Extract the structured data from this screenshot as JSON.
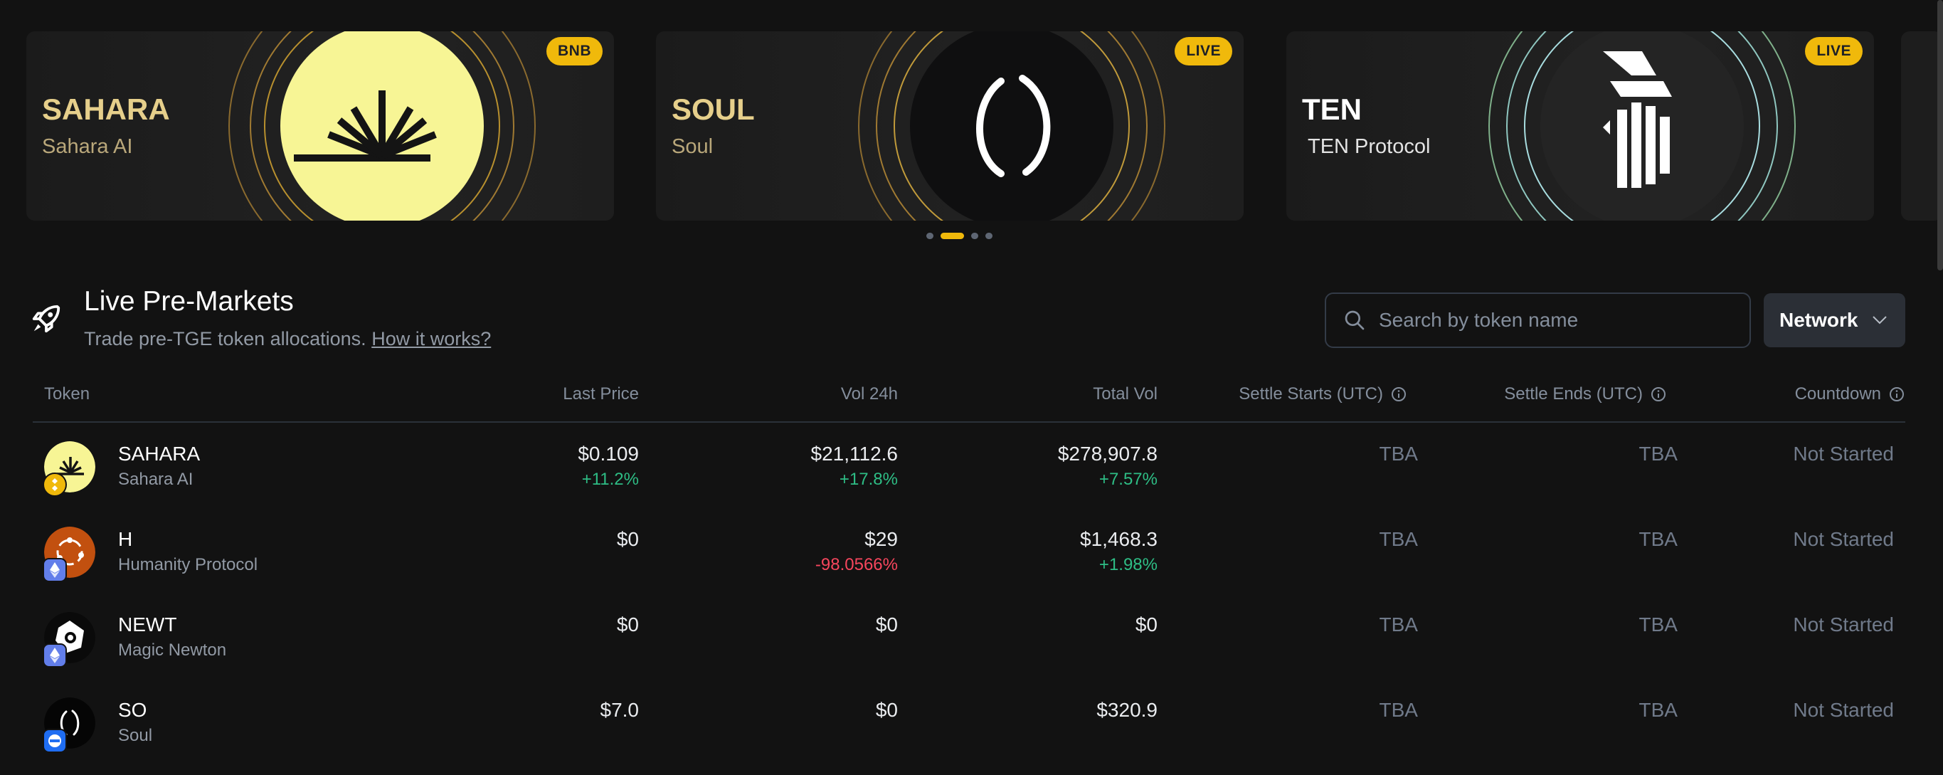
{
  "banners": [
    {
      "symbol": "SAHARA",
      "name": "Sahara AI",
      "tag": "BNB"
    },
    {
      "symbol": "SOUL",
      "name": "Soul",
      "tag": "LIVE"
    },
    {
      "symbol": "TEN",
      "name": "TEN Protocol",
      "tag": "LIVE"
    }
  ],
  "carousel": {
    "active_index": 1,
    "count": 4
  },
  "section": {
    "title": "Live Pre-Markets",
    "subtitle": "Trade pre-TGE token allocations.",
    "link": "How it works?"
  },
  "search": {
    "placeholder": "Search by token name",
    "value": ""
  },
  "network": {
    "label": "Network"
  },
  "table": {
    "headers": {
      "token": "Token",
      "last_price": "Last Price",
      "vol_24h": "Vol 24h",
      "total_vol": "Total Vol",
      "settle_starts": "Settle Starts (UTC)",
      "settle_ends": "Settle Ends (UTC)",
      "countdown": "Countdown"
    },
    "rows": [
      {
        "symbol": "SAHARA",
        "name": "Sahara AI",
        "last_price": "$0.109",
        "last_price_change": "+11.2%",
        "vol_24h": "$21,112.6",
        "vol_24h_change": "+17.8%",
        "total_vol": "$278,907.8",
        "total_vol_change": "+7.57%",
        "settle_starts": "TBA",
        "settle_ends": "TBA",
        "countdown": "Not Started"
      },
      {
        "symbol": "H",
        "name": "Humanity Protocol",
        "last_price": "$0",
        "last_price_change": "",
        "vol_24h": "$29",
        "vol_24h_change": "-98.0566%",
        "total_vol": "$1,468.3",
        "total_vol_change": "+1.98%",
        "settle_starts": "TBA",
        "settle_ends": "TBA",
        "countdown": "Not Started"
      },
      {
        "symbol": "NEWT",
        "name": "Magic Newton",
        "last_price": "$0",
        "last_price_change": "",
        "vol_24h": "$0",
        "vol_24h_change": "",
        "total_vol": "$0",
        "total_vol_change": "",
        "settle_starts": "TBA",
        "settle_ends": "TBA",
        "countdown": "Not Started"
      },
      {
        "symbol": "SO",
        "name": "Soul",
        "last_price": "$7.0",
        "last_price_change": "",
        "vol_24h": "$0",
        "vol_24h_change": "",
        "total_vol": "$320.9",
        "total_vol_change": "",
        "settle_starts": "TBA",
        "settle_ends": "TBA",
        "countdown": "Not Started"
      }
    ]
  },
  "colors": {
    "accent": "#f0b90b",
    "up": "#2ebd85",
    "down": "#f6465d"
  }
}
